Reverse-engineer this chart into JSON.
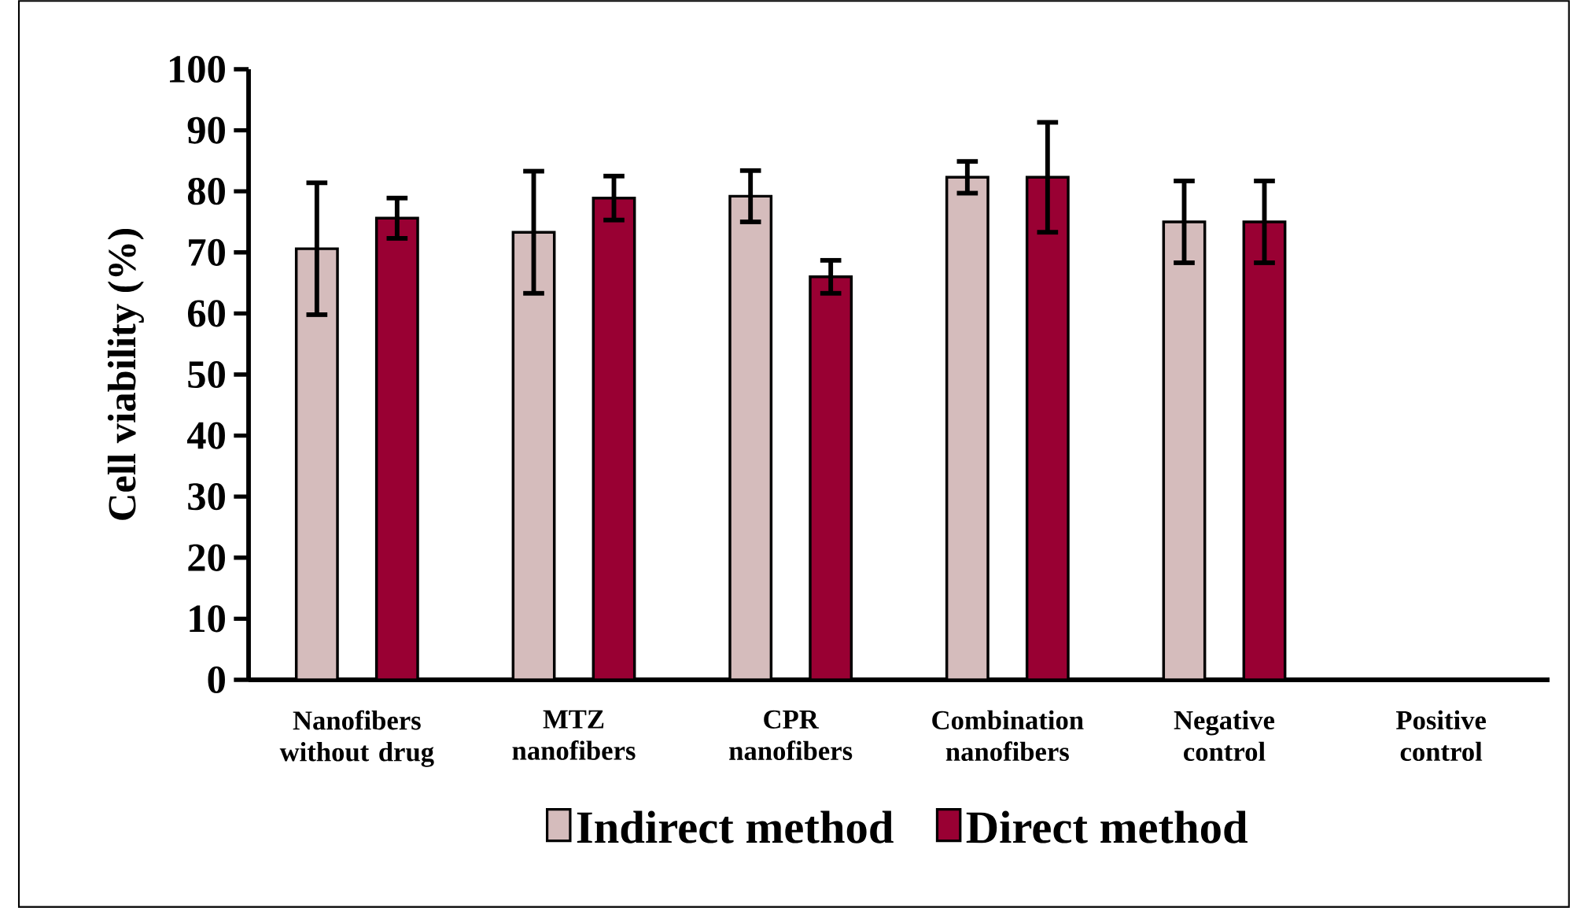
{
  "chart_data": {
    "type": "bar",
    "ylabel": "Cell viability (%)",
    "categories": [
      "Nanofibers without drug",
      "MTZ nanofibers",
      "CPR nanofibers",
      "Combination nanofibers",
      "Negative control",
      "Positive control"
    ],
    "series": [
      {
        "name": "Indirect method",
        "color": "#d5bcbc",
        "values": [
          70.6,
          73.3,
          79.2,
          82.3,
          75.0,
          null
        ],
        "errors": [
          10.8,
          10.0,
          4.2,
          2.6,
          6.7,
          null
        ]
      },
      {
        "name": "Direct method",
        "color": "#990033",
        "values": [
          75.6,
          78.9,
          66.0,
          82.3,
          75.0,
          null
        ],
        "errors": [
          3.3,
          3.6,
          2.7,
          9.0,
          6.7,
          null
        ]
      }
    ],
    "ylim": [
      0,
      100
    ],
    "yticks": [
      0,
      10,
      20,
      30,
      40,
      50,
      60,
      70,
      80,
      90,
      100
    ],
    "grid": false,
    "legend": "bottom"
  }
}
